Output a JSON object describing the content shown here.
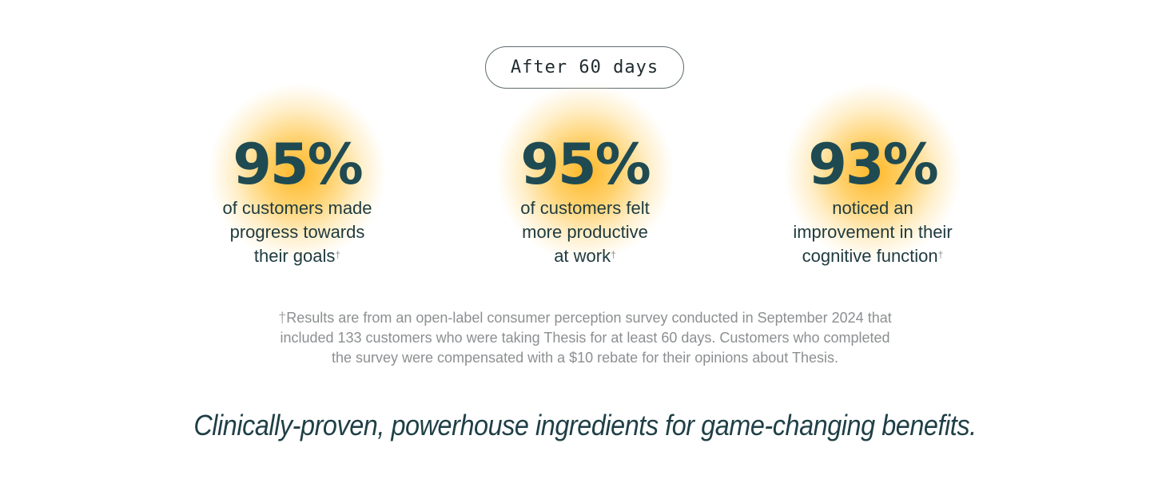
{
  "badge": {
    "label": "After 60 days"
  },
  "stats": [
    {
      "value": "95%",
      "lines": [
        "of customers made",
        "progress towards",
        "their goals"
      ],
      "marker": "†"
    },
    {
      "value": "95%",
      "lines": [
        "of customers felt",
        "more productive",
        "at work"
      ],
      "marker": "†"
    },
    {
      "value": "93%",
      "lines": [
        "noticed an",
        "improvement in their",
        "cognitive function"
      ],
      "marker": "†"
    }
  ],
  "footnote": {
    "marker": "†",
    "lines": [
      "Results are from an open-label consumer perception survey conducted in September 2024 that",
      "included 133 customers who were taking Thesis for at least 60 days. Customers who completed",
      "the survey were compensated with a $10 rebate for their opinions about Thesis."
    ]
  },
  "tagline": "Clinically-proven, powerhouse ingredients for game-changing benefits.",
  "colors": {
    "heading_teal": "#1f4a52",
    "glow_amber": "#ffb622",
    "footnote_gray": "#8c8f91"
  }
}
